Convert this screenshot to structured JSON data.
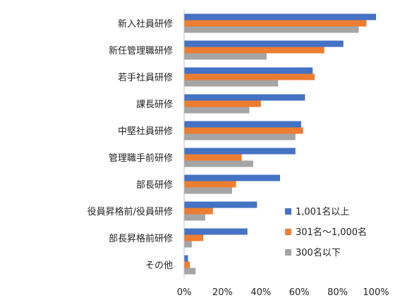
{
  "chart_data": {
    "type": "bar",
    "orientation": "horizontal",
    "categories": [
      "新入社員研修",
      "新任管理職研修",
      "若手社員研修",
      "課長研修",
      "中堅社員研修",
      "管理職手前研修",
      "部長研修",
      "役員昇格前/役員研修",
      "部長昇格前研修",
      "その他"
    ],
    "series": [
      {
        "name": "1,001名以上",
        "color": "#4472c4",
        "values": [
          100,
          83,
          67,
          63,
          61,
          58,
          50,
          38,
          33,
          2
        ]
      },
      {
        "name": "301名～1,000名",
        "color": "#ed7d31",
        "values": [
          95,
          73,
          68,
          40,
          62,
          30,
          27,
          15,
          10,
          3
        ]
      },
      {
        "name": "300名以下",
        "color": "#a5a5a5",
        "values": [
          91,
          43,
          49,
          34,
          58,
          36,
          25,
          11,
          4,
          6
        ]
      }
    ],
    "x_ticks": [
      "0%",
      "20%",
      "40%",
      "60%",
      "80%",
      "100%"
    ],
    "xlim": [
      0,
      100
    ],
    "grid": false,
    "legend_position": "bottom-right",
    "title": "",
    "xlabel": "",
    "ylabel": ""
  }
}
